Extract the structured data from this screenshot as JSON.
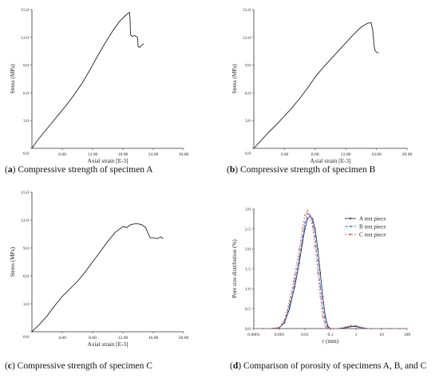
{
  "captions": [
    {
      "letter": "a",
      "text": "Compressive strength of specimen A"
    },
    {
      "letter": "b",
      "text": "Compressive strength of specimen B"
    },
    {
      "letter": "c",
      "text": "Compressive strength of specimen C"
    },
    {
      "letter": "d",
      "text": "Comparison of porosity of specimens A, B, and C"
    }
  ],
  "chart_data": [
    {
      "type": "line",
      "xlabel": "Axial strain   [E-3]",
      "ylabel": "Stress   (MPa)",
      "xlim": [
        0,
        30
      ],
      "ylim": [
        0,
        15
      ],
      "xticks": [
        "6.00",
        "12.00",
        "18.00",
        "24.00",
        "30.00"
      ],
      "yticks": [
        "0.0",
        "3.0",
        "6.0",
        "9.0",
        "12.0",
        "15.0"
      ],
      "origin_label": "0.0",
      "line_color": "#222222",
      "x": [
        0,
        1,
        2.5,
        4,
        5.5,
        7,
        8.5,
        10,
        11.5,
        13,
        14.5,
        16,
        17.3,
        18.4,
        19.0,
        19.3,
        19.4,
        19.5,
        19.8,
        20.3,
        20.6,
        20.9,
        21.0,
        21.3,
        21.8,
        22.1
      ],
      "y": [
        0,
        0.8,
        1.8,
        2.8,
        3.8,
        4.8,
        5.9,
        7.1,
        8.5,
        10.0,
        11.4,
        12.7,
        13.7,
        14.3,
        14.6,
        14.7,
        14.1,
        12.3,
        12.1,
        12.2,
        12.1,
        12.0,
        11.0,
        10.9,
        11.2,
        11.3
      ]
    },
    {
      "type": "line",
      "xlabel": "Axial strain   [E-3]",
      "ylabel": "Stress   (MPa)",
      "xlim": [
        0,
        20
      ],
      "ylim": [
        0,
        15
      ],
      "xticks": [
        "4.00",
        "8.00",
        "12.00",
        "16.00",
        "20.00"
      ],
      "yticks": [
        "0.0",
        "3.0",
        "6.0",
        "9.0",
        "12.0",
        "15.0"
      ],
      "origin_label": "0.0",
      "line_color": "#222222",
      "x": [
        0,
        1,
        2,
        3,
        4,
        5,
        6,
        7,
        8,
        9,
        10,
        11,
        12,
        13,
        14,
        14.8,
        15.3,
        15.5,
        15.7,
        15.8,
        16.0,
        16.3
      ],
      "y": [
        0,
        0.9,
        1.8,
        2.6,
        3.5,
        4.4,
        5.4,
        6.5,
        7.7,
        8.7,
        9.6,
        10.5,
        11.4,
        12.3,
        13.1,
        13.5,
        13.6,
        12.9,
        11.1,
        10.6,
        10.4,
        10.3
      ]
    },
    {
      "type": "line",
      "xlabel": "Axial strain   [E-3]",
      "ylabel": "Stress   (MPa)",
      "xlim": [
        0,
        20
      ],
      "ylim": [
        0,
        15
      ],
      "xticks": [
        "4.00",
        "8.00",
        "12.00",
        "16.00",
        "20.00"
      ],
      "yticks": [
        "0.0",
        "3.0",
        "6.0",
        "9.0",
        "12.0",
        "15.0"
      ],
      "origin_label": "0.0",
      "line_color": "#222222",
      "x": [
        0,
        1,
        2,
        3,
        4,
        5,
        6,
        7,
        8,
        9,
        10,
        11,
        12,
        12.5,
        13,
        13.5,
        14,
        14.5,
        15,
        15.3,
        15.6,
        16,
        16.5,
        17,
        17.3
      ],
      "y": [
        0,
        0.8,
        1.7,
        2.8,
        3.8,
        4.6,
        5.4,
        6.4,
        7.5,
        8.6,
        9.7,
        10.7,
        11.3,
        11.2,
        11.5,
        11.6,
        11.6,
        11.5,
        11.2,
        10.6,
        10.1,
        10.1,
        10.0,
        10.2,
        10.0
      ]
    },
    {
      "type": "line",
      "xlabel": "r (mm)",
      "ylabel": "Pore size distribution  (%)",
      "x_scale": "log",
      "xlim": [
        0.0001,
        100
      ],
      "ylim": [
        0,
        3.0
      ],
      "xticks": [
        "0.0001",
        "0.001",
        "0.01",
        "0.1",
        "1",
        "10",
        "100"
      ],
      "yticks": [
        "0.0",
        "0.5",
        "1.0",
        "1.5",
        "2.0",
        "2.5",
        "3.0"
      ],
      "legend_position": "top-right",
      "x": [
        0.0001,
        0.0005,
        0.001,
        0.0016,
        0.0025,
        0.004,
        0.006,
        0.008,
        0.01,
        0.0126,
        0.016,
        0.02,
        0.025,
        0.032,
        0.04,
        0.05,
        0.063,
        0.08,
        0.1,
        0.2,
        0.4,
        0.63,
        1.0,
        1.6,
        3,
        10,
        100
      ],
      "series": [
        {
          "name": "A test piece",
          "color": "#2b2b55",
          "dash": "solid",
          "values": [
            0,
            0,
            0.02,
            0.15,
            0.5,
            1.05,
            1.65,
            2.15,
            2.5,
            2.75,
            2.82,
            2.75,
            2.5,
            2.0,
            1.4,
            0.8,
            0.3,
            0.05,
            0,
            0,
            0.02,
            0.05,
            0.05,
            0.02,
            0,
            0,
            0
          ]
        },
        {
          "name": "B test piece",
          "color": "#3a6fc0",
          "dash": "4,2",
          "values": [
            0,
            0,
            0.02,
            0.18,
            0.6,
            1.2,
            1.8,
            2.3,
            2.65,
            2.88,
            2.85,
            2.68,
            2.3,
            1.7,
            1.05,
            0.5,
            0.15,
            0.02,
            0,
            0,
            0.03,
            0.06,
            0.06,
            0.03,
            0,
            0,
            0
          ]
        },
        {
          "name": "C test piece",
          "color": "#e05a4a",
          "dash": "2,2",
          "values": [
            0,
            0,
            0.03,
            0.22,
            0.7,
            1.35,
            2.0,
            2.5,
            2.85,
            2.96,
            2.82,
            2.55,
            2.05,
            1.4,
            0.8,
            0.3,
            0.05,
            0,
            0,
            0,
            0.04,
            0.08,
            0.07,
            0.03,
            0,
            0,
            0
          ]
        }
      ]
    }
  ]
}
